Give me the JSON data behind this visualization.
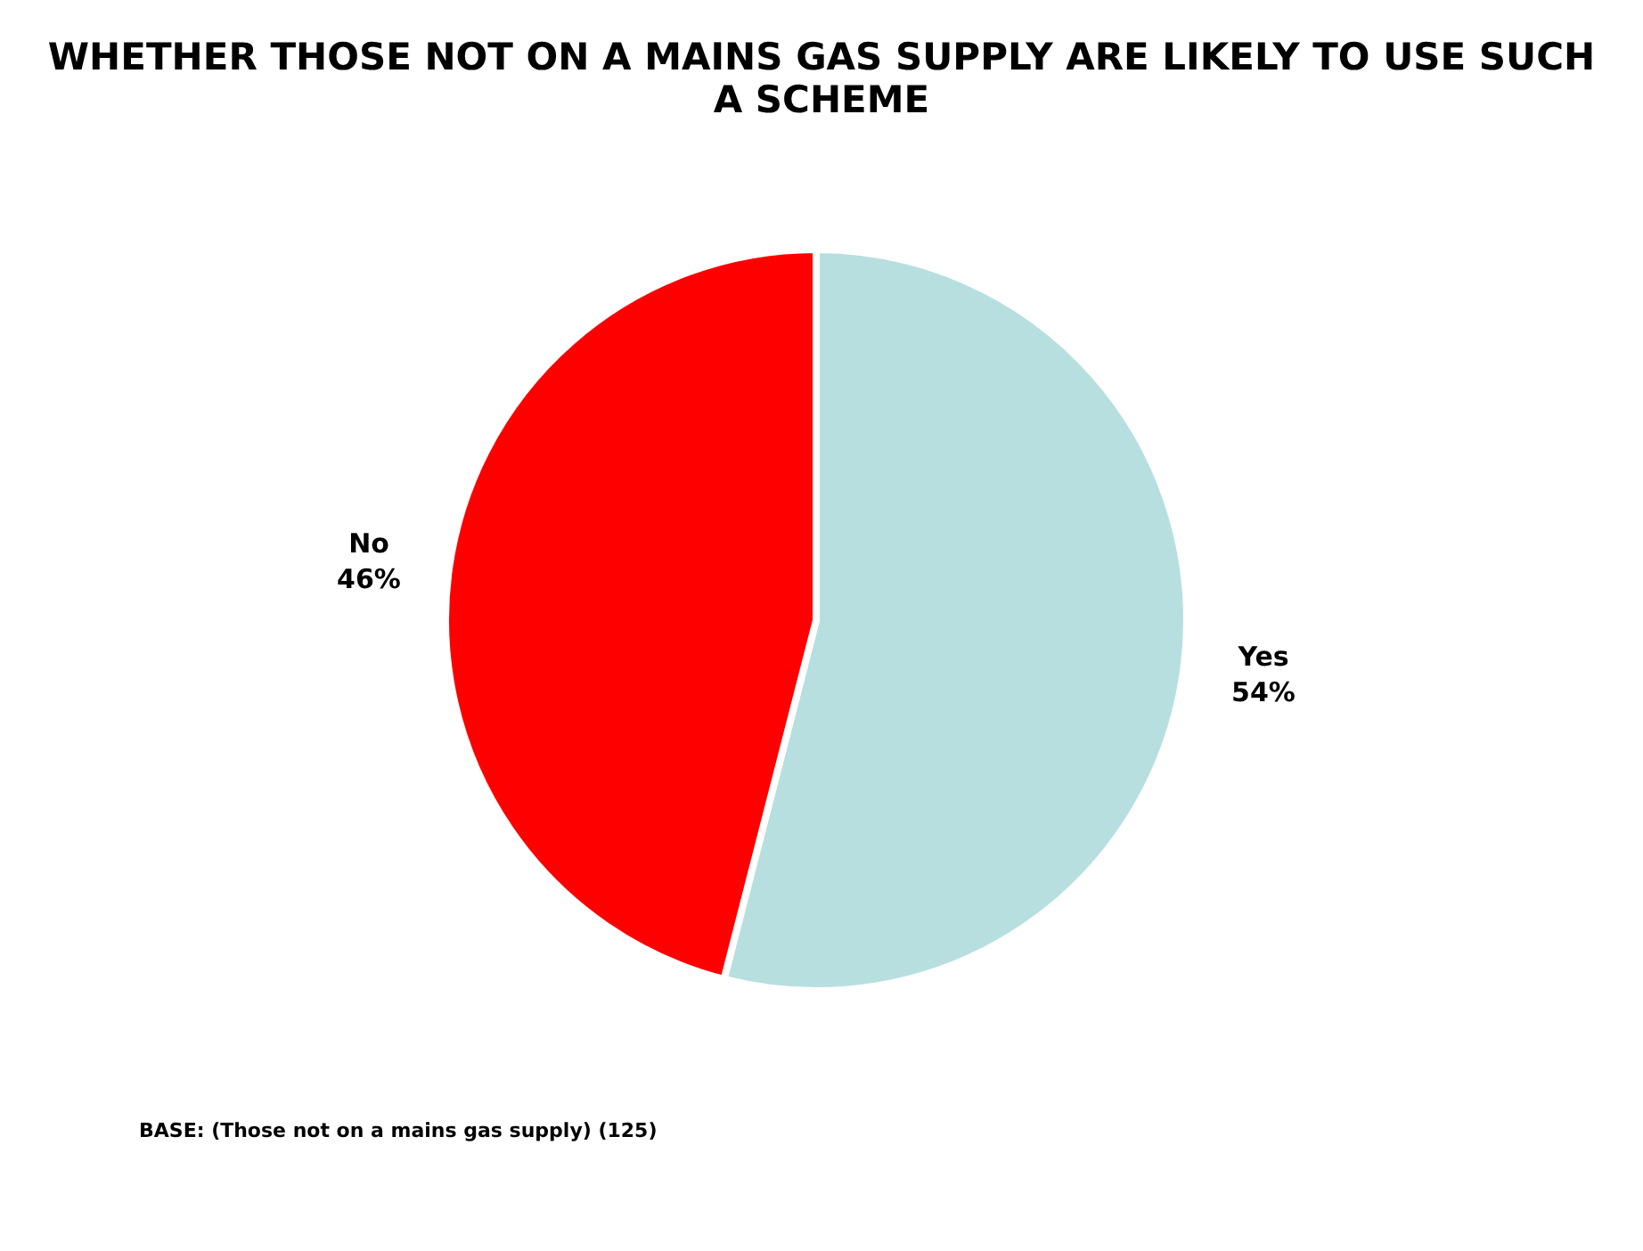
{
  "chart_data": {
    "type": "pie",
    "title": "WHETHER THOSE NOT ON A MAINS GAS SUPPLY ARE LIKELY TO USE SUCH A SCHEME",
    "categories": [
      "Yes",
      "No"
    ],
    "values": [
      54,
      46
    ],
    "value_labels": [
      "54%",
      "46%"
    ],
    "colors": [
      "#b8dfe0",
      "#ff0000"
    ],
    "legend": false,
    "annotations": [
      "BASE: (Those not on a mains gas supply) (125)"
    ]
  }
}
